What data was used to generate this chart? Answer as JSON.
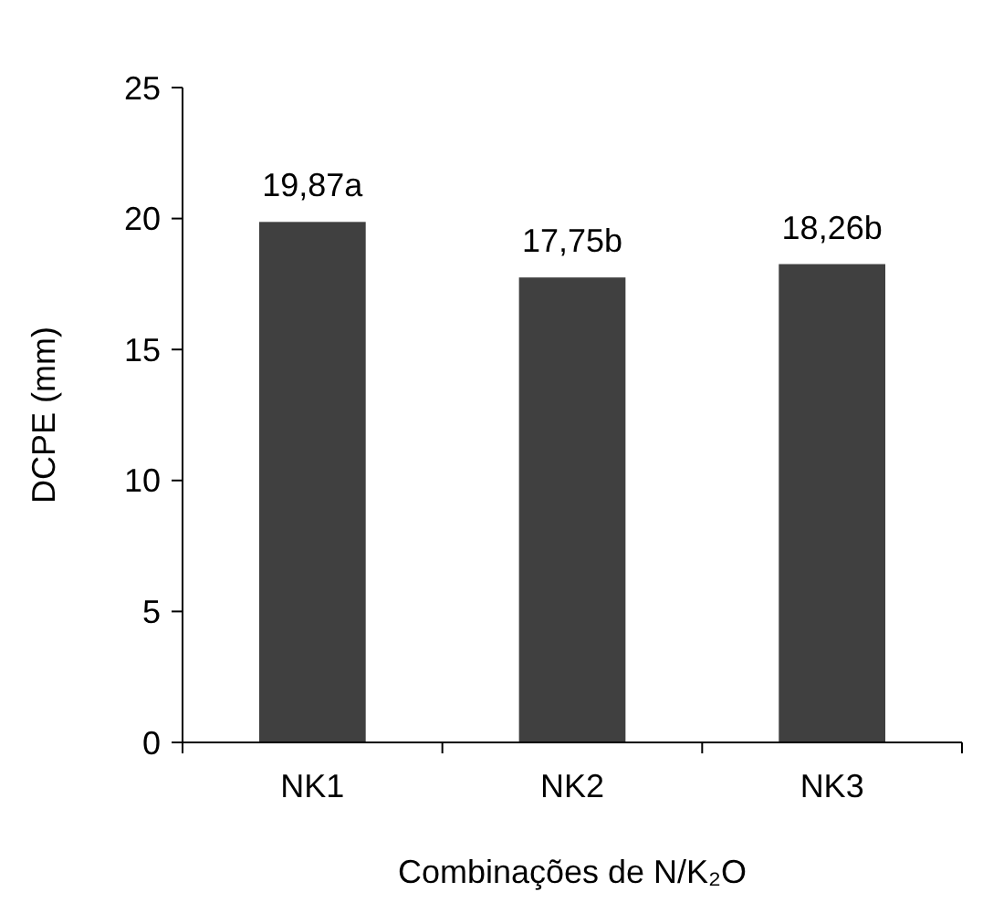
{
  "chart_data": {
    "type": "bar",
    "xlabel": "Combinações de N/K₂O",
    "ylabel": "DCPE (mm)",
    "categories": [
      "NK1",
      "NK2",
      "NK3"
    ],
    "values": [
      19.87,
      17.75,
      18.26
    ],
    "color": "#404040",
    "value_labels": [
      "19,87a",
      "17,75b",
      "18,26b"
    ],
    "ylim": [
      0,
      25
    ],
    "yticks": [
      0,
      5,
      10,
      15,
      20,
      25
    ],
    "grid": false
  }
}
